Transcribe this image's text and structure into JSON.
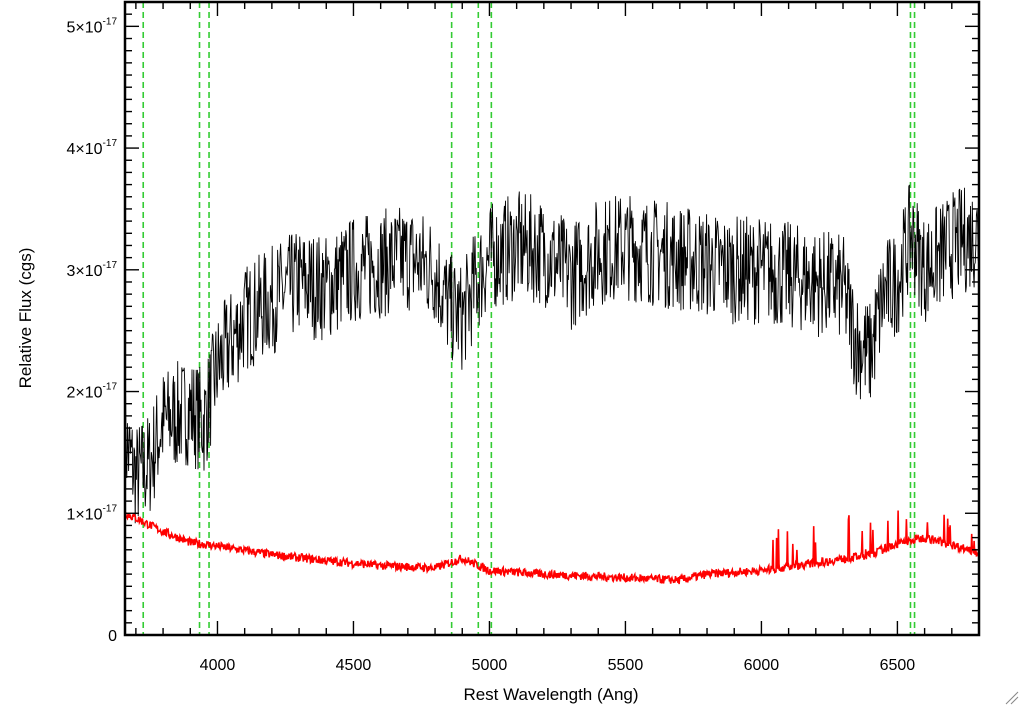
{
  "chart_data": {
    "type": "line",
    "title": "",
    "xlabel": "Rest Wavelength (Ang)",
    "ylabel": "Relative Flux (cgs)",
    "xlim": [
      3660,
      6800
    ],
    "ylim": [
      0,
      5.2e-17
    ],
    "x_ticks": [
      {
        "value": 4000,
        "label": "4000"
      },
      {
        "value": 4500,
        "label": "4500"
      },
      {
        "value": 5000,
        "label": "5000"
      },
      {
        "value": 5500,
        "label": "5500"
      },
      {
        "value": 6000,
        "label": "6000"
      },
      {
        "value": 6500,
        "label": "6500"
      }
    ],
    "y_ticks": [
      {
        "value": 0,
        "mantissa": "0",
        "exponent": ""
      },
      {
        "value": 1e-17,
        "mantissa": "1×10",
        "exponent": "-17"
      },
      {
        "value": 2e-17,
        "mantissa": "2×10",
        "exponent": "-17"
      },
      {
        "value": 3e-17,
        "mantissa": "3×10",
        "exponent": "-17"
      },
      {
        "value": 4e-17,
        "mantissa": "4×10",
        "exponent": "-17"
      },
      {
        "value": 5e-17,
        "mantissa": "5×10",
        "exponent": "-17"
      }
    ],
    "emission_line_markers": [
      3727,
      3934,
      3969,
      4861,
      4959,
      5007,
      6548,
      6563
    ],
    "marker_color": "#33cc33",
    "series": [
      {
        "color": "#000000",
        "points": [
          [
            3660,
            1.6e-17
          ],
          [
            3700,
            1.3e-17
          ],
          [
            3750,
            1.4e-17
          ],
          [
            3800,
            1.75e-17
          ],
          [
            3850,
            1.8e-17
          ],
          [
            3900,
            1.85e-17
          ],
          [
            3950,
            1.75e-17
          ],
          [
            4000,
            2.2e-17
          ],
          [
            4100,
            2.6e-17
          ],
          [
            4200,
            2.75e-17
          ],
          [
            4300,
            2.9e-17
          ],
          [
            4400,
            2.85e-17
          ],
          [
            4500,
            3e-17
          ],
          [
            4600,
            3.05e-17
          ],
          [
            4700,
            3.1e-17
          ],
          [
            4800,
            3e-17
          ],
          [
            4850,
            2.7e-17
          ],
          [
            4900,
            2.6e-17
          ],
          [
            4950,
            2.9e-17
          ],
          [
            5000,
            3.1e-17
          ],
          [
            5100,
            3.2e-17
          ],
          [
            5200,
            3.15e-17
          ],
          [
            5300,
            2.95e-17
          ],
          [
            5400,
            3.15e-17
          ],
          [
            5500,
            3.2e-17
          ],
          [
            5600,
            3.15e-17
          ],
          [
            5700,
            3.1e-17
          ],
          [
            5800,
            3.05e-17
          ],
          [
            5900,
            3e-17
          ],
          [
            6000,
            3e-17
          ],
          [
            6100,
            2.95e-17
          ],
          [
            6200,
            2.9e-17
          ],
          [
            6300,
            2.85e-17
          ],
          [
            6350,
            2.4e-17
          ],
          [
            6400,
            2.3e-17
          ],
          [
            6450,
            2.8e-17
          ],
          [
            6500,
            2.9e-17
          ],
          [
            6550,
            3.3e-17
          ],
          [
            6600,
            3e-17
          ],
          [
            6700,
            3.2e-17
          ],
          [
            6800,
            3.3e-17
          ]
        ]
      },
      {
        "color": "#ff0000",
        "points": [
          [
            3660,
            1e-17
          ],
          [
            3700,
            9.6e-18
          ],
          [
            3800,
            8.5e-18
          ],
          [
            3900,
            7.6e-18
          ],
          [
            4000,
            7.3e-18
          ],
          [
            4200,
            6.6e-18
          ],
          [
            4400,
            6.1e-18
          ],
          [
            4600,
            5.7e-18
          ],
          [
            4800,
            5.5e-18
          ],
          [
            4900,
            6.3e-18
          ],
          [
            5000,
            5.3e-18
          ],
          [
            5200,
            5e-18
          ],
          [
            5400,
            4.8e-18
          ],
          [
            5600,
            4.6e-18
          ],
          [
            5700,
            4.5e-18
          ],
          [
            5800,
            5e-18
          ],
          [
            6000,
            5.3e-18
          ],
          [
            6200,
            5.9e-18
          ],
          [
            6400,
            6.6e-18
          ],
          [
            6500,
            7.5e-18
          ],
          [
            6600,
            8e-18
          ],
          [
            6700,
            7.4e-18
          ],
          [
            6800,
            6.8e-18
          ]
        ]
      }
    ]
  }
}
